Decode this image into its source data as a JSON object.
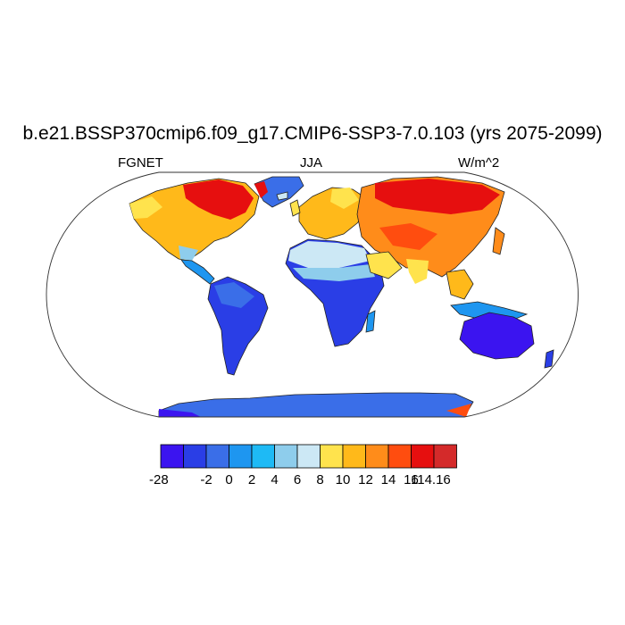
{
  "title": "b.e21.BSSP370cmip6.f09_g17.CMIP6-SSP3-7.0.103 (yrs 2075-2099)",
  "left_label": "FGNET",
  "center_label": "JJA",
  "right_label": "W/m^2",
  "projection": "Robinson",
  "colorbar": {
    "colors": [
      "#3b14f0",
      "#2a3ee6",
      "#3a6ee8",
      "#1e96f0",
      "#1ebaf5",
      "#8ecdec",
      "#cce8f5",
      "#ffe34d",
      "#ffb91a",
      "#ff8c1a",
      "#ff4d0f",
      "#e60f0f",
      "#d42a2a"
    ],
    "tick_labels": [
      "-28",
      "-2",
      "0",
      "2",
      "4",
      "6",
      "8",
      "10",
      "12",
      "14",
      "16",
      "114.16"
    ]
  },
  "land_regions": {
    "north_america": "warm_high",
    "greenland": "cold_low",
    "south_america": "cold_low",
    "europe": "warm",
    "asia": "warm_high",
    "north_africa": "neutral_light",
    "central_south_africa": "cold_low",
    "australia": "cold_low",
    "antarctica": "cold_low"
  }
}
